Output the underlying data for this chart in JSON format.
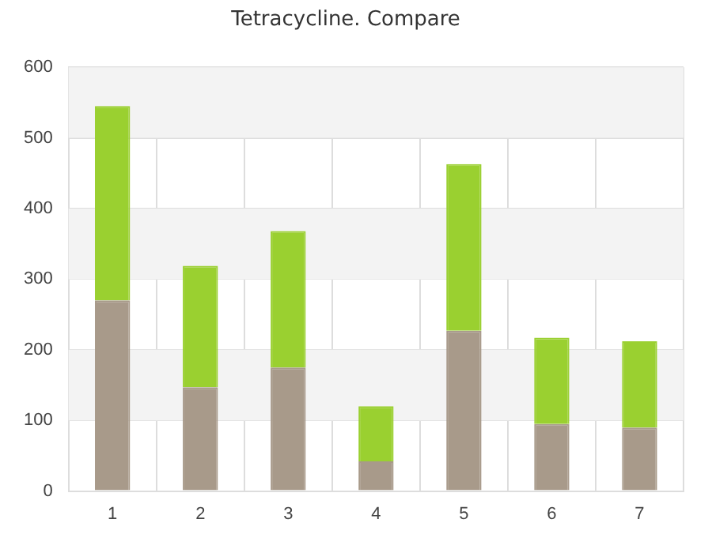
{
  "chart_data": {
    "type": "bar",
    "title": "Tetracycline. Compare",
    "stacked": true,
    "categories": [
      "1",
      "2",
      "3",
      "4",
      "5",
      "6",
      "7"
    ],
    "series": [
      {
        "color": "#a89a8a",
        "values": [
          270,
          147,
          175,
          42,
          227,
          95,
          90
        ]
      },
      {
        "color": "#9ad030",
        "values": [
          275,
          172,
          193,
          78,
          236,
          122,
          122
        ]
      }
    ],
    "ylim": [
      0,
      600
    ],
    "yticks": [
      0,
      100,
      200,
      300,
      400,
      500,
      600
    ],
    "grid": true
  }
}
